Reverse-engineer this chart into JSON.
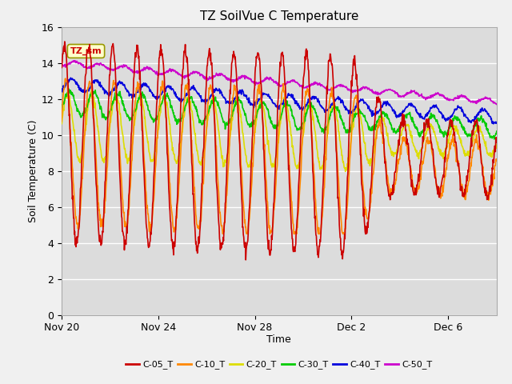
{
  "title": "TZ SoilVue C Temperature",
  "xlabel": "Time",
  "ylabel": "Soil Temperature (C)",
  "ylim": [
    0,
    16
  ],
  "yticks": [
    0,
    2,
    4,
    6,
    8,
    10,
    12,
    14,
    16
  ],
  "legend_label": "TZ_sm",
  "legend_entries": [
    "C-05_T",
    "C-10_T",
    "C-20_T",
    "C-30_T",
    "C-40_T",
    "C-50_T"
  ],
  "line_colors": [
    "#cc0000",
    "#ff8800",
    "#dddd00",
    "#00cc00",
    "#0000dd",
    "#cc00cc"
  ],
  "xtick_labels": [
    "Nov 20",
    "Nov 24",
    "Nov 28",
    "Dec 2",
    "Dec 6"
  ],
  "xtick_positions": [
    0,
    4,
    8,
    12,
    16
  ],
  "xlim": [
    0,
    18
  ]
}
